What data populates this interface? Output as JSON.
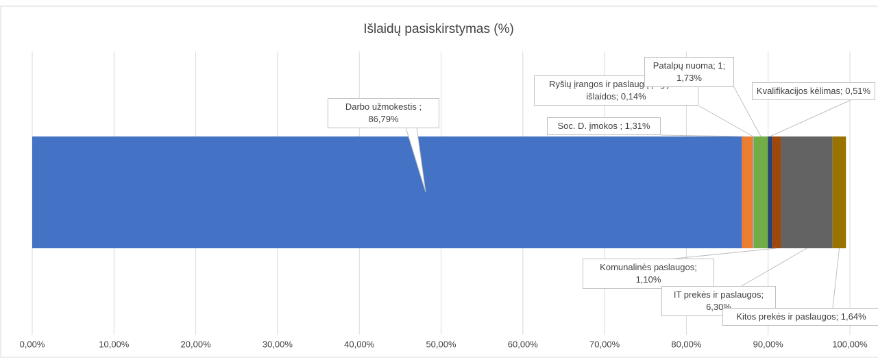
{
  "chart_data": {
    "type": "stacked_bar_horizontal",
    "title": "Išlaidų pasiskirstymas (%)",
    "xlim": [
      0,
      100
    ],
    "xticks": [
      {
        "value": 0,
        "label": "0,00%"
      },
      {
        "value": 10,
        "label": "10,00%"
      },
      {
        "value": 20,
        "label": "20,00%"
      },
      {
        "value": 30,
        "label": "30,00%"
      },
      {
        "value": 40,
        "label": "40,00%"
      },
      {
        "value": 50,
        "label": "50,00%"
      },
      {
        "value": 60,
        "label": "60,00%"
      },
      {
        "value": 70,
        "label": "70,00%"
      },
      {
        "value": 80,
        "label": "80,00%"
      },
      {
        "value": 90,
        "label": "90,00%"
      },
      {
        "value": 100,
        "label": "100,00%"
      }
    ],
    "grid": true,
    "series": [
      {
        "label": "Darbo užmokestis ; 86,79%",
        "color": "#4472c4",
        "values": [
          86.79
        ]
      },
      {
        "label": "Soc. D. įmokos ; 1,31%",
        "color": "#ed7d31",
        "values": [
          1.31
        ]
      },
      {
        "label": "Ryšių įrangos ir paslaugų įsigijimo išlaidos; 0,14%",
        "color": "#a5a5a5",
        "values": [
          0.14
        ]
      },
      {
        "label": "Patalpų nuoma; 1; 1,73%",
        "color": "#70ad47",
        "values": [
          1.73
        ]
      },
      {
        "label": "Kvalifikacijos kėlimas; 0,51%",
        "color": "#264478",
        "values": [
          0.51
        ]
      },
      {
        "label": "Komunalinės paslaugos; 1,10%",
        "color": "#9e480e",
        "values": [
          1.1
        ]
      },
      {
        "label": "IT prekės ir paslaugos; 6,30%",
        "color": "#636363",
        "values": [
          6.3
        ]
      },
      {
        "label": "Kitos prekės ir paslaugos; 1,64%",
        "color": "#997300",
        "values": [
          1.64
        ]
      }
    ]
  }
}
